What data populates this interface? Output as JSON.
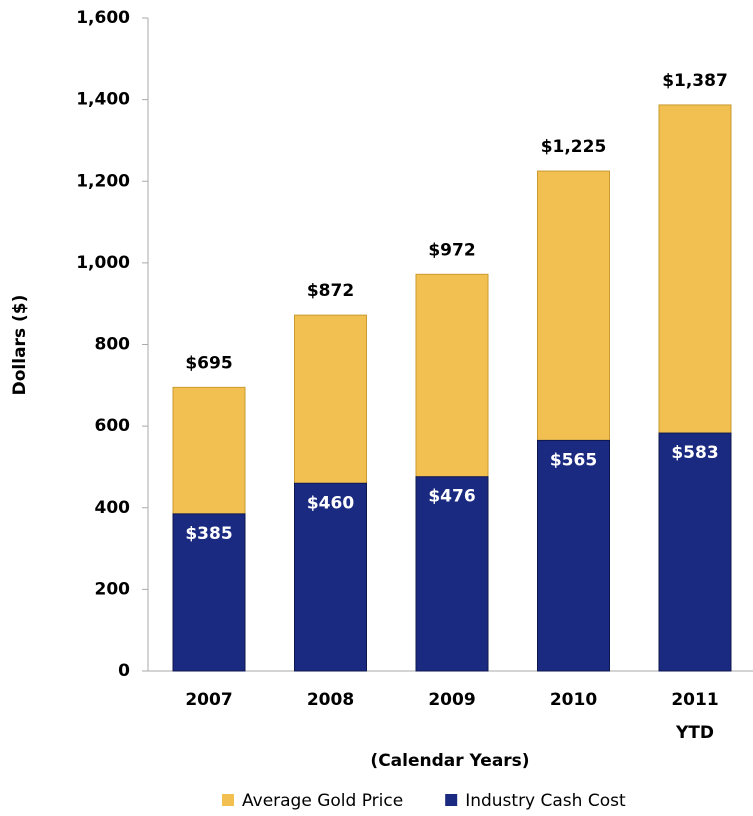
{
  "chart_data": {
    "type": "bar",
    "x_label": "(Calendar Years)",
    "y_label": "Dollars ($)",
    "categories": [
      "2007",
      "2008",
      "2009",
      "2010",
      "2011\nYTD"
    ],
    "series": [
      {
        "name": "Average Gold Price",
        "color": "#f2c050",
        "values": [
          695,
          872,
          972,
          1225,
          1387
        ],
        "value_labels": [
          "$695",
          "$872",
          "$972",
          "$1,225",
          "$1,387"
        ]
      },
      {
        "name": "Industry Cash Cost",
        "color": "#1a2a80",
        "values": [
          385,
          460,
          476,
          565,
          583
        ],
        "value_labels": [
          "$385",
          "$460",
          "$476",
          "$565",
          "$583"
        ]
      }
    ],
    "ylim": [
      0,
      1600
    ],
    "yticks": [
      0,
      200,
      400,
      600,
      800,
      {
        "value": 1000,
        "label": "1,000"
      },
      {
        "value": 1200,
        "label": "1,200"
      },
      {
        "value": 1400,
        "label": "1,400"
      },
      {
        "value": 1600,
        "label": "1,600"
      }
    ],
    "grid": false,
    "bar_mode": "overlap"
  }
}
